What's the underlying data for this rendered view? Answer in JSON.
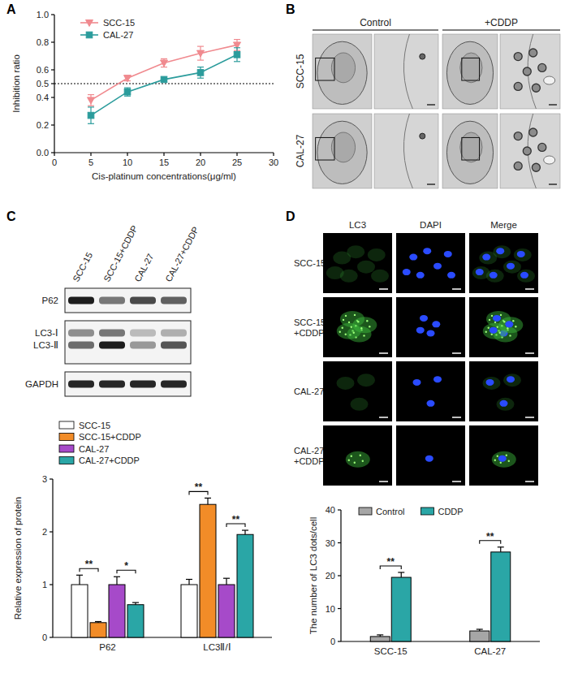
{
  "panel_labels": [
    "A",
    "B",
    "C",
    "D"
  ],
  "tem": {
    "columns": [
      "Control",
      "+CDDP"
    ],
    "rows": [
      "SCC-15",
      "CAL-27"
    ]
  },
  "blot": {
    "lanes": [
      "SCC-15",
      "SCC-15+CDDP",
      "CAL-27",
      "CAL-27+CDDP"
    ],
    "bands": [
      "P62",
      "LC3-Ⅰ",
      "LC3-Ⅱ",
      "GAPDH"
    ]
  },
  "fluorescence": {
    "columns": [
      "LC3",
      "DAPI",
      "Merge"
    ],
    "rows": [
      [
        "SCC-15"
      ],
      [
        "SCC-15",
        "+CDDP"
      ],
      [
        "CAL-27"
      ],
      [
        "CAL-27",
        "+CDDP"
      ]
    ]
  },
  "chart_data": [
    {
      "type": "line",
      "x_label": "Cis-platinum concentrations(μg/ml)",
      "y_label": "Inhibition ratio",
      "x": [
        5,
        10,
        15,
        20,
        25
      ],
      "series": [
        {
          "name": "SCC-15",
          "color": "#f08a8f",
          "marker": "triangle-down",
          "values": [
            0.38,
            0.54,
            0.65,
            0.72,
            0.78
          ],
          "errors": [
            0.04,
            0.02,
            0.03,
            0.05,
            0.04
          ]
        },
        {
          "name": "CAL-27",
          "color": "#2b9c9c",
          "marker": "square",
          "values": [
            0.27,
            0.44,
            0.53,
            0.58,
            0.71
          ],
          "errors": [
            0.06,
            0.03,
            0.01,
            0.04,
            0.05
          ]
        }
      ],
      "xlim": [
        0,
        30
      ],
      "xticks": [
        0,
        5,
        10,
        15,
        20,
        25,
        30
      ],
      "ylim": [
        0,
        1
      ],
      "yticks": [
        {
          "value": 0,
          "label": "0.0"
        },
        0.2,
        0.4,
        0.5,
        0.6,
        0.8,
        {
          "value": 1,
          "label": "1.0"
        }
      ],
      "reference_line": 0.5,
      "legend": "top-left"
    },
    {
      "type": "bar",
      "y_label": "Relative expression of protein",
      "categories": [
        "P62",
        "LC3Ⅱ/Ⅰ"
      ],
      "series": [
        {
          "name": "SCC-15",
          "color": "#ffffff",
          "values": [
            1.0,
            1.0
          ],
          "errors": [
            0.18,
            0.1
          ]
        },
        {
          "name": "SCC-15+CDDP",
          "color": "#f28c28",
          "values": [
            0.28,
            2.52
          ],
          "errors": [
            0.02,
            0.12
          ]
        },
        {
          "name": "CAL-27",
          "color": "#a64ac9",
          "values": [
            1.0,
            1.0
          ],
          "errors": [
            0.15,
            0.12
          ]
        },
        {
          "name": "CAL-27+CDDP",
          "color": "#2aa6a6",
          "values": [
            0.62,
            1.95
          ],
          "errors": [
            0.04,
            0.08
          ]
        }
      ],
      "ylim": [
        0,
        3
      ],
      "yticks": [
        0,
        1,
        2,
        3
      ],
      "annotations": [
        {
          "category": 0,
          "series": [
            0,
            1
          ],
          "text": "**"
        },
        {
          "category": 0,
          "series": [
            2,
            3
          ],
          "text": "*"
        },
        {
          "category": 1,
          "series": [
            0,
            1
          ],
          "text": "**"
        },
        {
          "category": 1,
          "series": [
            2,
            3
          ],
          "text": "**"
        }
      ],
      "legend": "top-left"
    },
    {
      "type": "bar",
      "y_label": "The number of LC3 dots/cell",
      "categories": [
        "SCC-15",
        "CAL-27"
      ],
      "series": [
        {
          "name": "Control",
          "color": "#a6a6a6",
          "values": [
            1.5,
            3.2
          ],
          "errors": [
            0.5,
            0.5
          ]
        },
        {
          "name": "CDDP",
          "color": "#2aa6a6",
          "values": [
            19.5,
            27.2
          ],
          "errors": [
            1.5,
            1.5
          ]
        }
      ],
      "ylim": [
        0,
        40
      ],
      "yticks": [
        0,
        10,
        20,
        30,
        40
      ],
      "annotations": [
        {
          "category": 0,
          "series": [
            0,
            1
          ],
          "text": "**"
        },
        {
          "category": 1,
          "series": [
            0,
            1
          ],
          "text": "**"
        }
      ],
      "legend": "top"
    }
  ]
}
